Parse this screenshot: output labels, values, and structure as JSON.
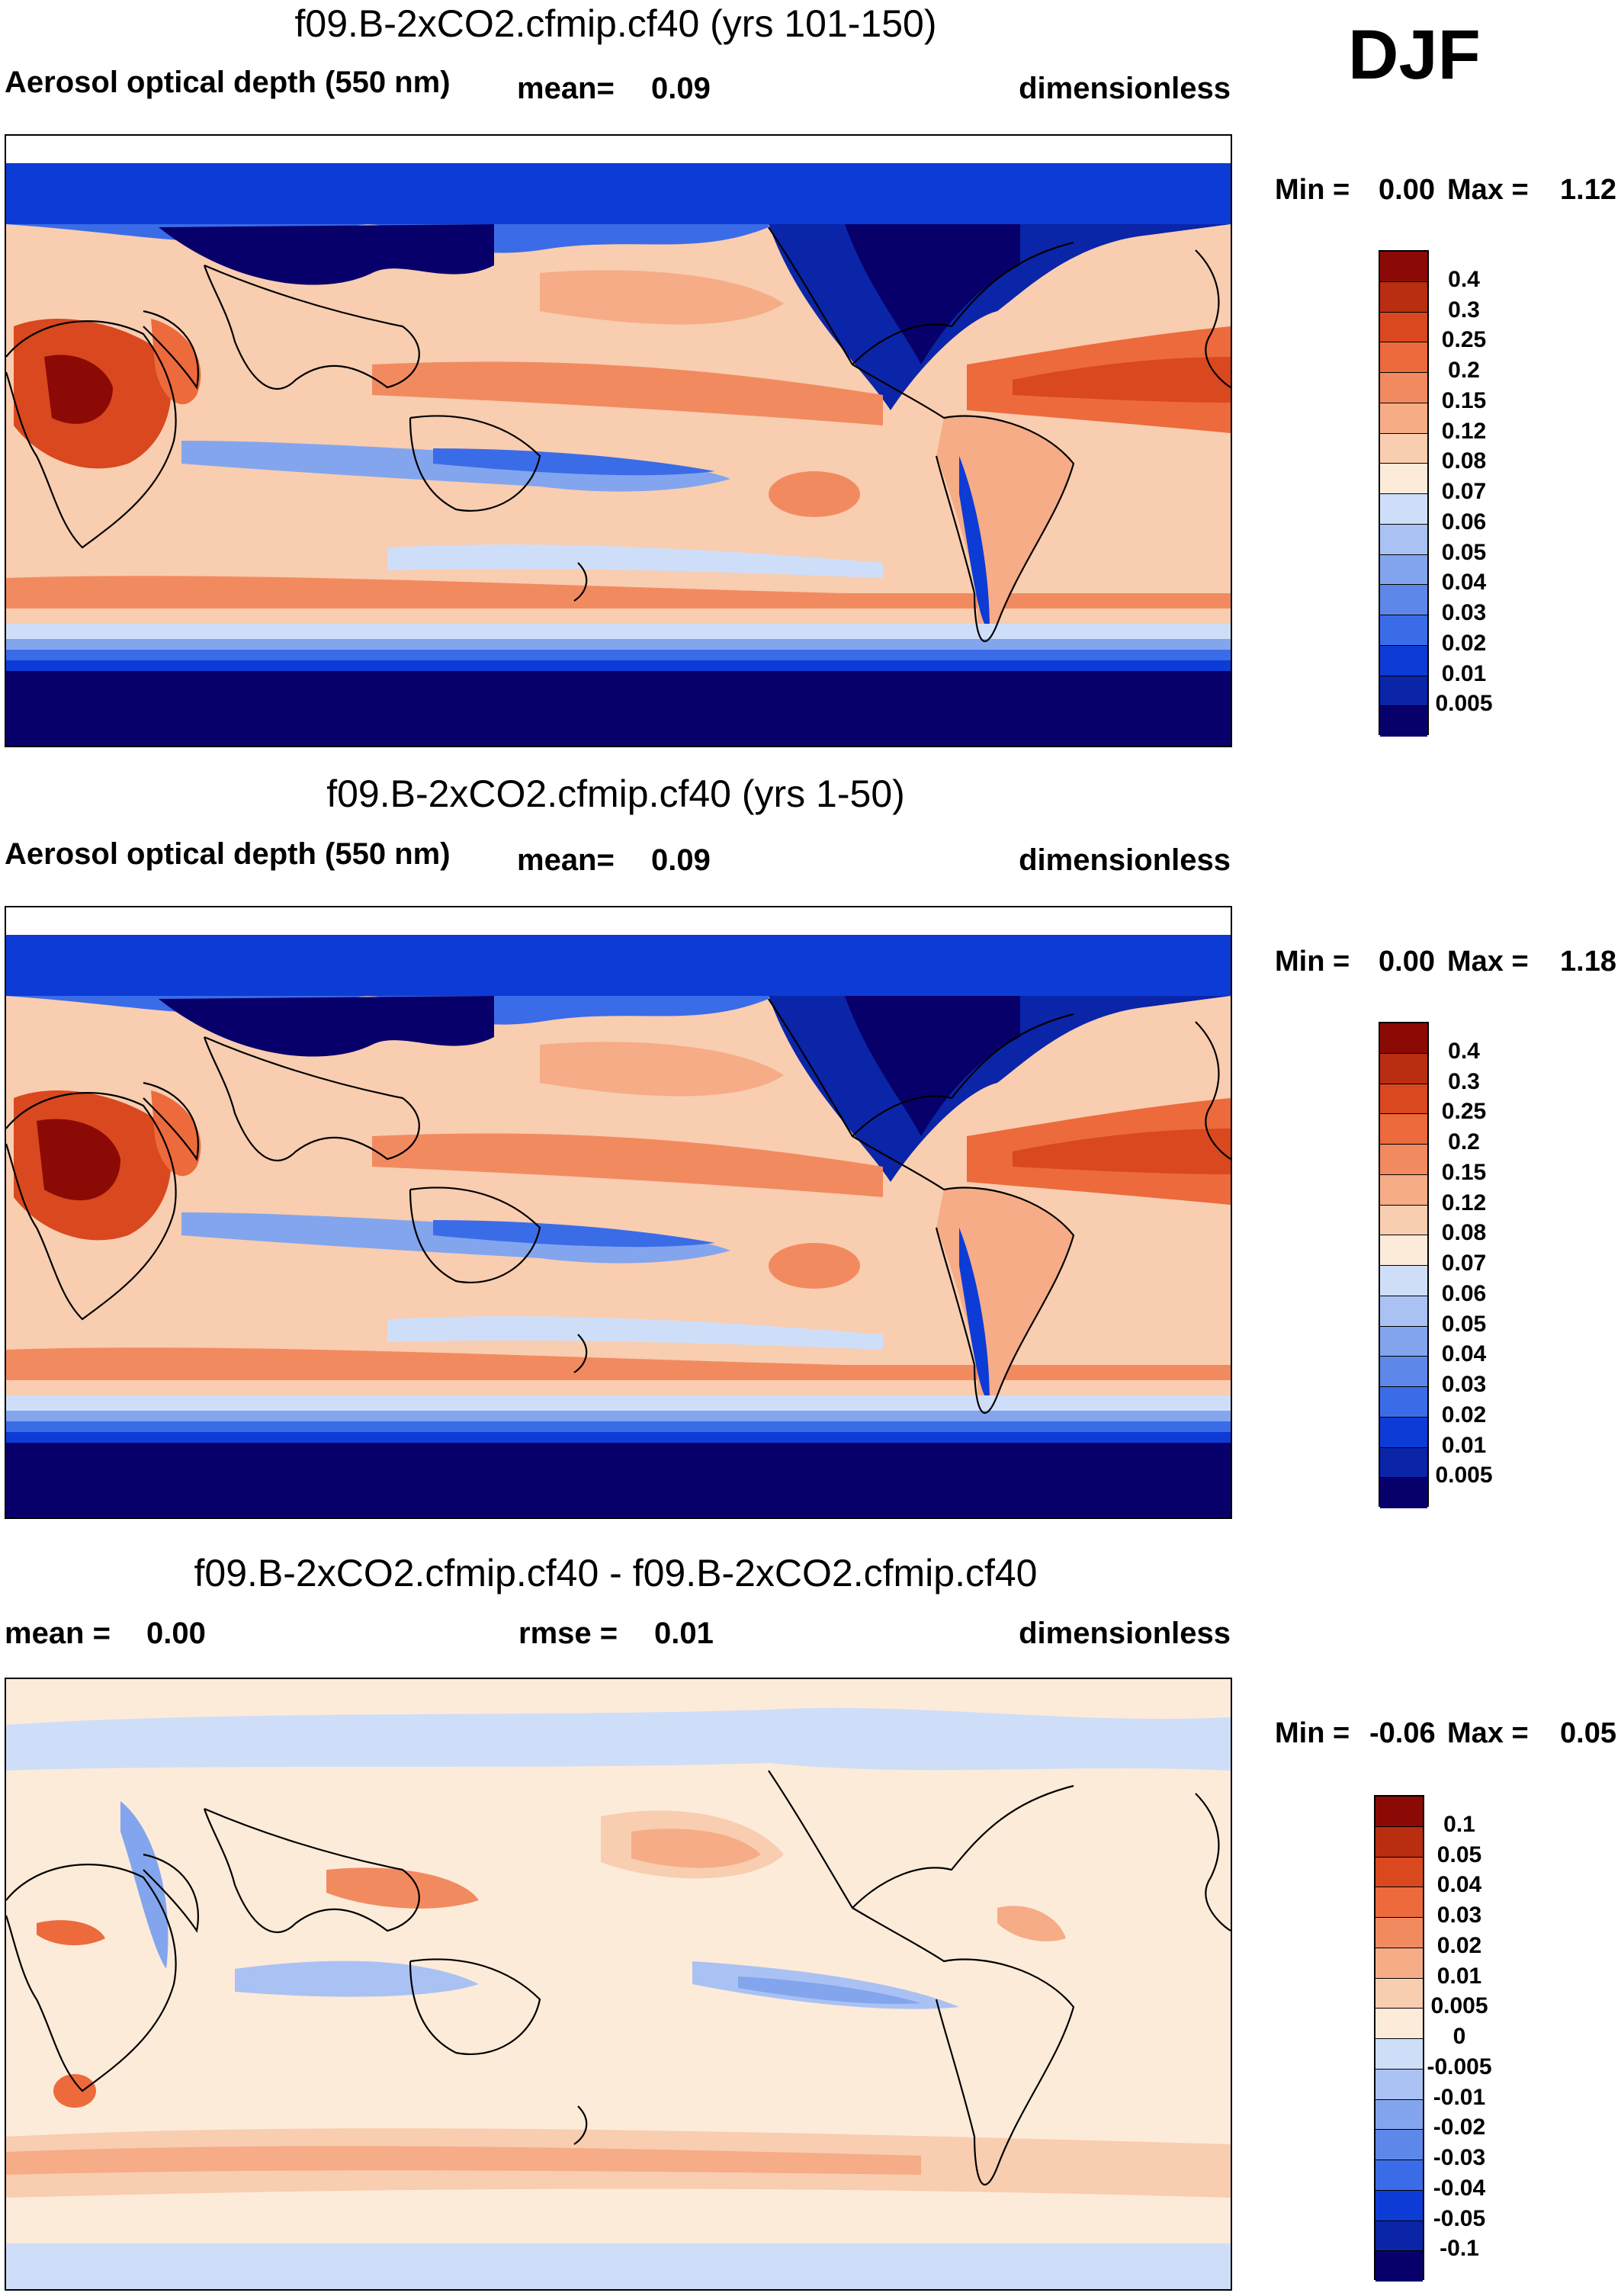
{
  "season": "DJF",
  "colors": {
    "diverging": [
      "#08006a",
      "#0a25a8",
      "#0d3bd6",
      "#1a52e6",
      "#3b6ce8",
      "#5e87ea",
      "#83a5ee",
      "#a9c2f3",
      "#cfdef8",
      "#fdebd9",
      "#f8cdb0",
      "#f5ac87",
      "#f28a60",
      "#ec6a3c",
      "#d9481e",
      "#b92d10",
      "#8b0a06"
    ],
    "diff": [
      "#08006a",
      "#0a25a8",
      "#0d3bd6",
      "#1a52e6",
      "#3b6ce8",
      "#5e87ea",
      "#83a5ee",
      "#a9c2f3",
      "#cfdef8",
      "#fdebd9",
      "#f8cdb0",
      "#f5ac87",
      "#f28a60",
      "#ec6a3c",
      "#d9481e",
      "#b92d10",
      "#8b0a06"
    ],
    "coast": "#000000"
  },
  "panels": [
    {
      "title": "f09.B-2xCO2.cfmip.cf40 (yrs 101-150)",
      "variable": "Aerosol optical depth (550 nm)",
      "mean_label": "mean=",
      "mean_value": "0.09",
      "units": "dimensionless",
      "min_label": "Min =",
      "min_value": "0.00",
      "max_label": "Max =",
      "max_value": "1.12"
    },
    {
      "title": "f09.B-2xCO2.cfmip.cf40 (yrs 1-50)",
      "variable": "Aerosol optical depth (550 nm)",
      "mean_label": "mean=",
      "mean_value": "0.09",
      "units": "dimensionless",
      "min_label": "Min =",
      "min_value": "0.00",
      "max_label": "Max =",
      "max_value": "1.18"
    },
    {
      "title": "f09.B-2xCO2.cfmip.cf40 - f09.B-2xCO2.cfmip.cf40",
      "mean_label": "mean =",
      "mean_value": "0.00",
      "rmse_label": "rmse =",
      "rmse_value": "0.01",
      "units": "dimensionless",
      "min_label": "Min =",
      "min_value": "-0.06",
      "max_label": "Max =",
      "max_value": "0.05"
    }
  ],
  "colorbar_levels": [
    "0.4",
    "0.3",
    "0.25",
    "0.2",
    "0.15",
    "0.12",
    "0.08",
    "0.07",
    "0.06",
    "0.05",
    "0.04",
    "0.03",
    "0.02",
    "0.01",
    "0.005"
  ],
  "diff_colorbar_levels": [
    "0.1",
    "0.05",
    "0.04",
    "0.03",
    "0.02",
    "0.01",
    "0.005",
    "0",
    "-0.005",
    "-0.01",
    "-0.02",
    "-0.03",
    "-0.04",
    "-0.05",
    "-0.1"
  ]
}
